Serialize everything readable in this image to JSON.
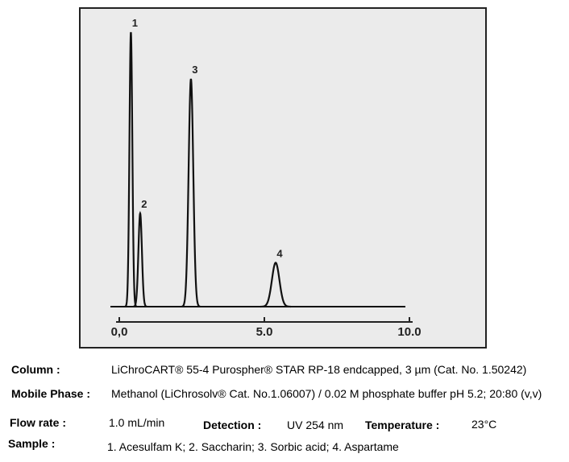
{
  "chart_data": {
    "type": "chromatogram",
    "peaks": [
      {
        "label": "1",
        "x": 0.4,
        "height": 100,
        "width": 0.05
      },
      {
        "label": "2",
        "x": 0.72,
        "height": 34,
        "width": 0.06
      },
      {
        "label": "3",
        "x": 2.47,
        "height": 83,
        "width": 0.08
      },
      {
        "label": "4",
        "x": 5.39,
        "height": 16,
        "width": 0.13
      }
    ],
    "xlim": [
      0,
      10
    ],
    "ylim": [
      0,
      100
    ],
    "xticks": [
      {
        "value": 0,
        "label": "0,0"
      },
      {
        "value": 5,
        "label": "5.0"
      },
      {
        "value": 10,
        "label": "10.0"
      }
    ],
    "color": "#111111"
  },
  "details": {
    "column_label": "Column :",
    "column": "LiChroCART® 55-4 Purospher® STAR RP-18 endcapped, 3 µm  (Cat. No. 1.50242)",
    "mobile_phase_label": "Mobile Phase :",
    "mobile_phase": "Methanol (LiChrosolv® Cat. No.1.06007) / 0.02 M phosphate buffer pH 5.2; 20:80 (v,v)",
    "flow_rate_label": "Flow rate :",
    "flow_rate": "1.0 mL/min",
    "detection_label": "Detection :",
    "detection": "UV 254 nm",
    "temperature_label": "Temperature :",
    "temperature": "23°C",
    "sample_label": "Sample :",
    "sample": "1. Acesulfam K; 2. Saccharin; 3. Sorbic acid; 4. Aspartame"
  }
}
